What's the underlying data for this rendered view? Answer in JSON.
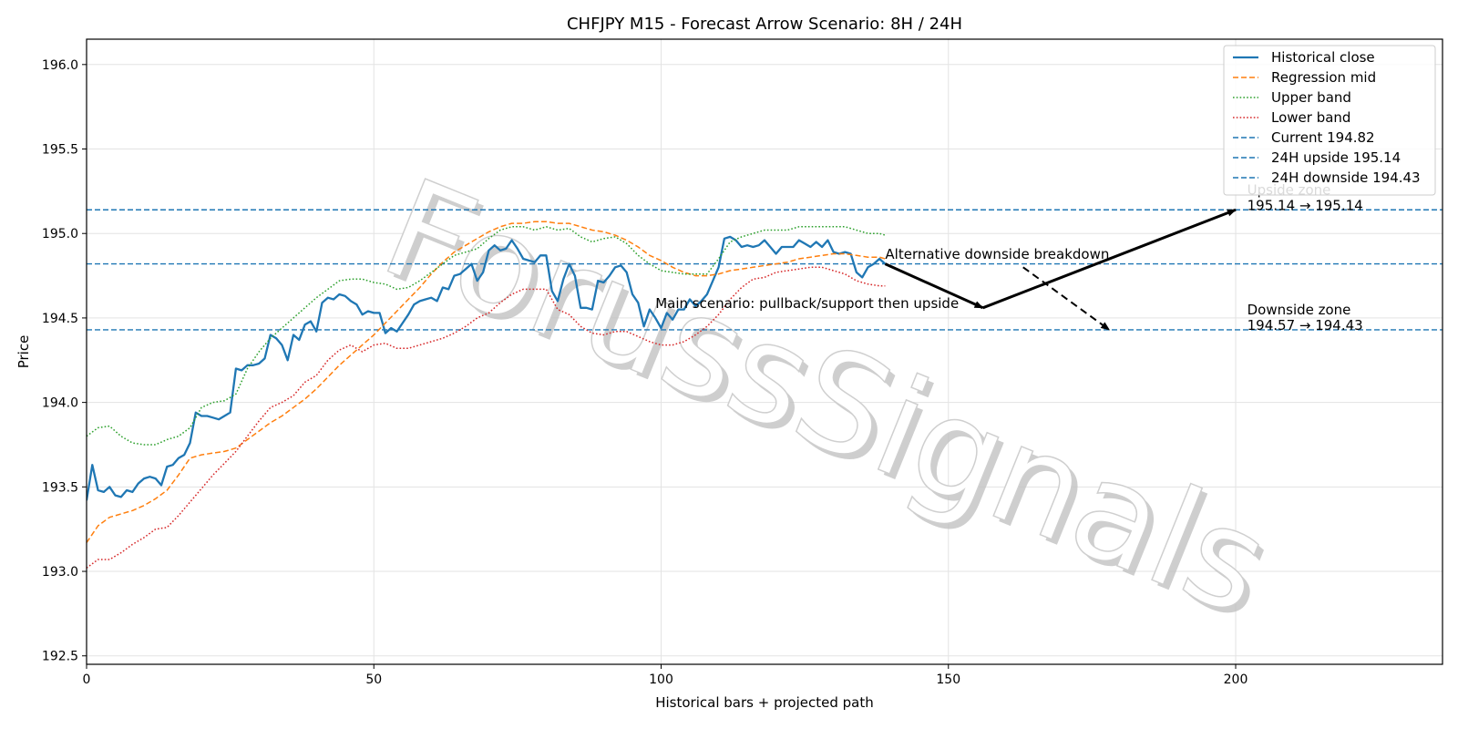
{
  "chart_data": {
    "type": "line",
    "title": "CHFJPY M15 - Forecast Arrow Scenario: 8H / 24H",
    "xlabel": "Historical bars + projected path",
    "ylabel": "Price",
    "xlim": [
      0,
      236
    ],
    "ylim": [
      192.45,
      196.15
    ],
    "xticks": [
      0,
      50,
      100,
      150,
      200
    ],
    "yticks": [
      192.5,
      193.0,
      193.5,
      194.0,
      194.5,
      195.0,
      195.5,
      196.0
    ],
    "grid": true,
    "legend_position": "top-right",
    "watermark": "ForussSignals",
    "colors": {
      "close": "#1f77b4",
      "mid": "#ff7f0e",
      "upper": "#2ca02c",
      "lower": "#d62728",
      "hline": "#1f77b4"
    },
    "series": [
      {
        "key": "close",
        "name": "Historical close",
        "style": "solid",
        "x": [
          0,
          1,
          2,
          3,
          4,
          5,
          6,
          7,
          8,
          9,
          10,
          11,
          12,
          13,
          14,
          15,
          16,
          17,
          18,
          19,
          20,
          21,
          22,
          23,
          24,
          25,
          26,
          27,
          28,
          29,
          30,
          31,
          32,
          33,
          34,
          35,
          36,
          37,
          38,
          39,
          40,
          41,
          42,
          43,
          44,
          45,
          46,
          47,
          48,
          49,
          50,
          51,
          52,
          53,
          54,
          55,
          56,
          57,
          58,
          59,
          60,
          61,
          62,
          63,
          64,
          65,
          66,
          67,
          68,
          69,
          70,
          71,
          72,
          73,
          74,
          75,
          76,
          77,
          78,
          79,
          80,
          81,
          82,
          83,
          84,
          85,
          86,
          87,
          88,
          89,
          90,
          91,
          92,
          93,
          94,
          95,
          96,
          97,
          98,
          99,
          100,
          101,
          102,
          103,
          104,
          105,
          106,
          107,
          108,
          109,
          110,
          111,
          112,
          113,
          114,
          115,
          116,
          117,
          118,
          119,
          120,
          121,
          122,
          123,
          124,
          125,
          126,
          127,
          128,
          129,
          130,
          131,
          132,
          133,
          134,
          135,
          136,
          137,
          138,
          139
        ],
        "y": [
          193.42,
          193.63,
          193.48,
          193.47,
          193.5,
          193.45,
          193.44,
          193.48,
          193.47,
          193.52,
          193.55,
          193.56,
          193.55,
          193.51,
          193.62,
          193.63,
          193.67,
          193.69,
          193.76,
          193.94,
          193.92,
          193.92,
          193.91,
          193.9,
          193.92,
          193.94,
          194.2,
          194.19,
          194.22,
          194.22,
          194.23,
          194.26,
          194.4,
          194.38,
          194.34,
          194.25,
          194.4,
          194.37,
          194.46,
          194.48,
          194.42,
          194.59,
          194.62,
          194.61,
          194.64,
          194.63,
          194.6,
          194.58,
          194.52,
          194.54,
          194.53,
          194.53,
          194.41,
          194.44,
          194.42,
          194.47,
          194.52,
          194.58,
          194.6,
          194.61,
          194.62,
          194.6,
          194.68,
          194.67,
          194.75,
          194.76,
          194.79,
          194.82,
          194.72,
          194.77,
          194.9,
          194.93,
          194.9,
          194.91,
          194.96,
          194.91,
          194.85,
          194.84,
          194.83,
          194.87,
          194.87,
          194.66,
          194.6,
          194.73,
          194.82,
          194.75,
          194.56,
          194.56,
          194.55,
          194.72,
          194.71,
          194.75,
          194.8,
          194.81,
          194.77,
          194.64,
          194.59,
          194.45,
          194.55,
          194.5,
          194.44,
          194.53,
          194.49,
          194.55,
          194.55,
          194.61,
          194.57,
          194.6,
          194.64,
          194.72,
          194.8,
          194.97,
          194.98,
          194.96,
          194.92,
          194.93,
          194.92,
          194.93,
          194.96,
          194.92,
          194.88,
          194.92,
          194.92,
          194.92,
          194.96,
          194.94,
          194.92,
          194.95,
          194.92,
          194.96,
          194.89,
          194.88,
          194.89,
          194.88,
          194.77,
          194.74,
          194.8,
          194.82,
          194.85,
          194.82
        ]
      },
      {
        "key": "mid",
        "name": "Regression mid",
        "style": "dashed",
        "x": [
          0,
          2,
          4,
          6,
          8,
          10,
          12,
          14,
          16,
          18,
          20,
          22,
          24,
          26,
          28,
          30,
          32,
          34,
          36,
          38,
          40,
          42,
          44,
          46,
          48,
          50,
          52,
          54,
          56,
          58,
          60,
          62,
          64,
          66,
          68,
          70,
          72,
          74,
          76,
          78,
          80,
          82,
          84,
          86,
          88,
          90,
          92,
          94,
          96,
          98,
          100,
          102,
          104,
          106,
          108,
          110,
          112,
          114,
          116,
          118,
          120,
          122,
          124,
          126,
          128,
          130,
          132,
          134,
          136,
          138,
          139
        ],
        "y": [
          193.17,
          193.27,
          193.32,
          193.34,
          193.36,
          193.39,
          193.43,
          193.48,
          193.57,
          193.67,
          193.69,
          193.7,
          193.71,
          193.73,
          193.78,
          193.83,
          193.88,
          193.92,
          193.97,
          194.02,
          194.08,
          194.15,
          194.22,
          194.28,
          194.34,
          194.4,
          194.47,
          194.54,
          194.61,
          194.68,
          194.76,
          194.83,
          194.89,
          194.93,
          194.97,
          195.01,
          195.04,
          195.06,
          195.06,
          195.07,
          195.07,
          195.06,
          195.06,
          195.04,
          195.02,
          195.01,
          194.99,
          194.96,
          194.92,
          194.87,
          194.84,
          194.8,
          194.77,
          194.75,
          194.75,
          194.76,
          194.78,
          194.79,
          194.8,
          194.81,
          194.82,
          194.83,
          194.85,
          194.86,
          194.87,
          194.88,
          194.88,
          194.87,
          194.86,
          194.86,
          194.85
        ]
      },
      {
        "key": "upper",
        "name": "Upper band",
        "style": "dotted",
        "x": [
          0,
          2,
          4,
          6,
          8,
          10,
          12,
          14,
          16,
          18,
          20,
          22,
          24,
          26,
          28,
          30,
          32,
          34,
          36,
          38,
          40,
          42,
          44,
          46,
          48,
          50,
          52,
          54,
          56,
          58,
          60,
          62,
          64,
          66,
          68,
          70,
          72,
          74,
          76,
          78,
          80,
          82,
          84,
          86,
          88,
          90,
          92,
          94,
          96,
          98,
          100,
          102,
          104,
          106,
          108,
          110,
          112,
          114,
          116,
          118,
          120,
          122,
          124,
          126,
          128,
          130,
          132,
          134,
          136,
          138,
          139
        ],
        "y": [
          193.8,
          193.85,
          193.86,
          193.8,
          193.76,
          193.75,
          193.75,
          193.78,
          193.8,
          193.85,
          193.97,
          194.0,
          194.01,
          194.05,
          194.2,
          194.3,
          194.38,
          194.44,
          194.5,
          194.56,
          194.62,
          194.67,
          194.72,
          194.73,
          194.73,
          194.71,
          194.7,
          194.67,
          194.68,
          194.72,
          194.77,
          194.82,
          194.87,
          194.89,
          194.91,
          194.97,
          195.02,
          195.04,
          195.04,
          195.02,
          195.04,
          195.02,
          195.03,
          194.98,
          194.95,
          194.97,
          194.98,
          194.94,
          194.87,
          194.82,
          194.78,
          194.77,
          194.76,
          194.76,
          194.76,
          194.85,
          194.95,
          194.98,
          195.0,
          195.02,
          195.02,
          195.02,
          195.04,
          195.04,
          195.04,
          195.04,
          195.04,
          195.02,
          195.0,
          195.0,
          194.99
        ]
      },
      {
        "key": "lower",
        "name": "Lower band",
        "style": "dotted",
        "x": [
          0,
          2,
          4,
          6,
          8,
          10,
          12,
          14,
          16,
          18,
          20,
          22,
          24,
          26,
          28,
          30,
          32,
          34,
          36,
          38,
          40,
          42,
          44,
          46,
          48,
          50,
          52,
          54,
          56,
          58,
          60,
          62,
          64,
          66,
          68,
          70,
          72,
          74,
          76,
          78,
          80,
          82,
          84,
          86,
          88,
          90,
          92,
          94,
          96,
          98,
          100,
          102,
          104,
          106,
          108,
          110,
          112,
          114,
          116,
          118,
          120,
          122,
          124,
          126,
          128,
          130,
          132,
          134,
          136,
          138,
          139
        ],
        "y": [
          193.02,
          193.07,
          193.07,
          193.11,
          193.16,
          193.2,
          193.25,
          193.26,
          193.33,
          193.41,
          193.49,
          193.57,
          193.64,
          193.71,
          193.8,
          193.89,
          193.97,
          194.0,
          194.04,
          194.12,
          194.16,
          194.25,
          194.31,
          194.34,
          194.3,
          194.34,
          194.35,
          194.32,
          194.32,
          194.34,
          194.36,
          194.38,
          194.41,
          194.45,
          194.5,
          194.53,
          194.59,
          194.64,
          194.67,
          194.67,
          194.67,
          194.55,
          194.52,
          194.45,
          194.41,
          194.4,
          194.42,
          194.42,
          194.39,
          194.36,
          194.34,
          194.34,
          194.36,
          194.4,
          194.45,
          194.52,
          194.61,
          194.68,
          194.73,
          194.74,
          194.77,
          194.78,
          194.79,
          194.8,
          194.8,
          194.78,
          194.76,
          194.72,
          194.7,
          194.69,
          194.69
        ]
      }
    ],
    "hlines": [
      {
        "name": "Current 194.82",
        "y": 194.82
      },
      {
        "name": "24H upside 195.14",
        "y": 195.14
      },
      {
        "name": "24H downside 194.43",
        "y": 194.43
      }
    ],
    "arrows": [
      {
        "from": [
          139,
          194.82
        ],
        "to": [
          156,
          194.56
        ],
        "style": "solid"
      },
      {
        "from": [
          156,
          194.56
        ],
        "to": [
          200,
          195.14
        ],
        "style": "solid"
      },
      {
        "from": [
          163,
          194.8
        ],
        "to": [
          178,
          194.43
        ],
        "style": "dashed"
      }
    ],
    "annotations": [
      {
        "lines": [
          "Upside zone",
          "195.14 → 195.14"
        ],
        "x": 202,
        "y": 195.14
      },
      {
        "lines": [
          "Downside zone",
          "194.57 → 194.43"
        ],
        "x": 202,
        "y": 194.43
      },
      {
        "lines": [
          "Main scenario: pullback/support then upside"
        ],
        "x": 99,
        "y": 194.56
      },
      {
        "lines": [
          "Alternative downside breakdown"
        ],
        "x": 139,
        "y": 194.85
      }
    ]
  }
}
